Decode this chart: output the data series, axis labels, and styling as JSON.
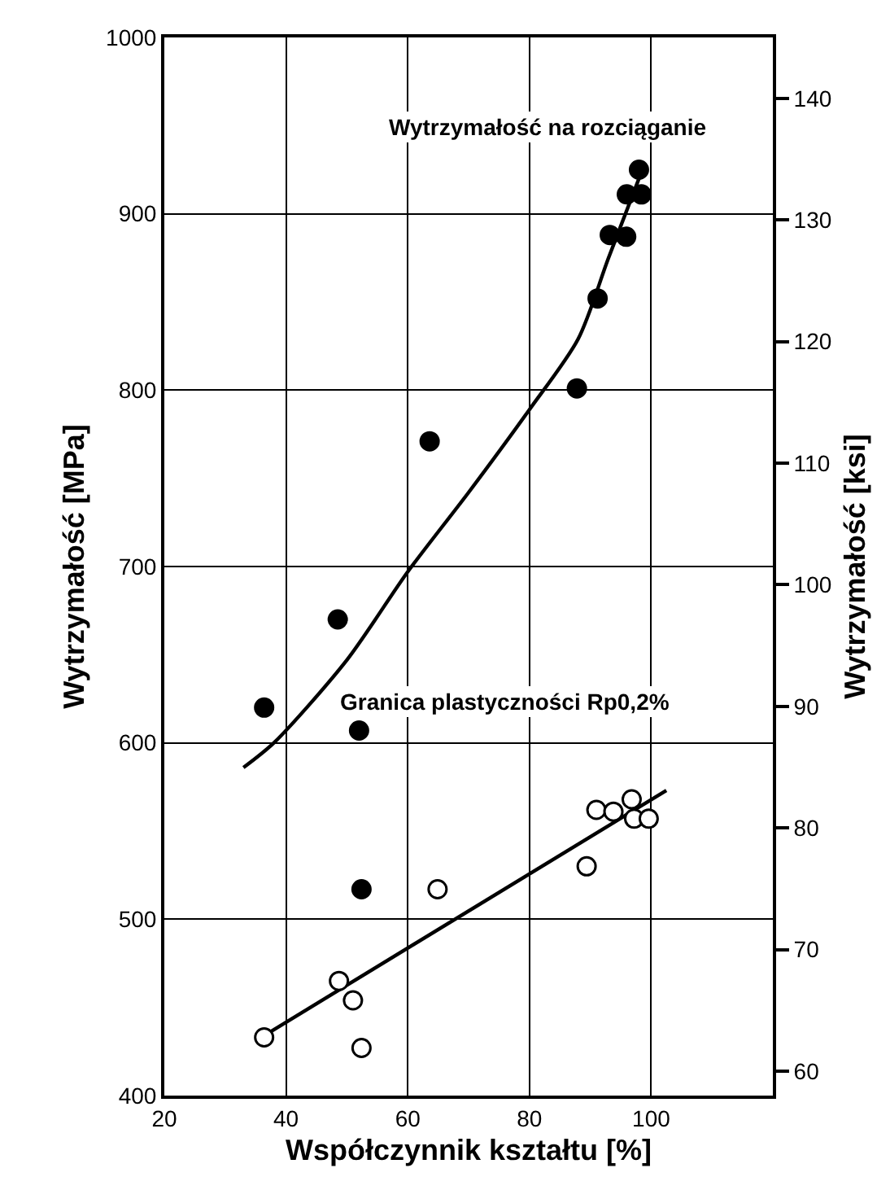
{
  "chart_data": {
    "type": "scatter",
    "xlabel": "Współczynnik kształtu [%]",
    "ylabel": "Wytrzymałość [MPa]",
    "y2label": "Wytrzymałość [ksi]",
    "xlim": [
      20,
      120
    ],
    "xticks": [
      20,
      40,
      60,
      80,
      100
    ],
    "ylim": [
      400,
      1000
    ],
    "yticks": [
      400,
      500,
      600,
      700,
      800,
      900,
      1000
    ],
    "y2lim": [
      58,
      145
    ],
    "y2ticks": [
      60,
      70,
      80,
      90,
      100,
      110,
      120,
      130,
      140
    ],
    "grid": true,
    "legend": false,
    "annotations": [
      "Wytrzymałość na rozciąganie",
      "Granica plastyczności Rp0,2%"
    ],
    "series": [
      {
        "marker": "circle",
        "color": "#000000",
        "x": [
          36.4,
          48.5,
          52,
          52.4,
          63.6,
          87.8,
          91.2,
          93.2,
          95.9,
          96,
          98,
          98.4
        ],
        "values": [
          620,
          670,
          607,
          517,
          771,
          801,
          852,
          888,
          887,
          911,
          925,
          911
        ]
      },
      {
        "marker": "circle",
        "color": "#ffffff",
        "x": [
          36.4,
          48.7,
          51,
          52.4,
          64.9,
          89.4,
          91,
          93.8,
          96.8,
          97.2,
          99.6
        ],
        "values": [
          433,
          465,
          454,
          427,
          517,
          530,
          562,
          561,
          568,
          557,
          557
        ]
      },
      {
        "type": "line",
        "marker": "none",
        "color": "#000000",
        "line_style": "solid",
        "x": [
          33,
          38,
          50,
          60,
          70,
          80,
          88,
          93,
          99
        ],
        "values": [
          586,
          600,
          647,
          697,
          742,
          789,
          829,
          875,
          929
        ]
      },
      {
        "type": "line",
        "marker": "none",
        "color": "#000000",
        "line_style": "solid",
        "x": [
          36.4,
          102.5
        ],
        "values": [
          434,
          573
        ]
      }
    ]
  }
}
